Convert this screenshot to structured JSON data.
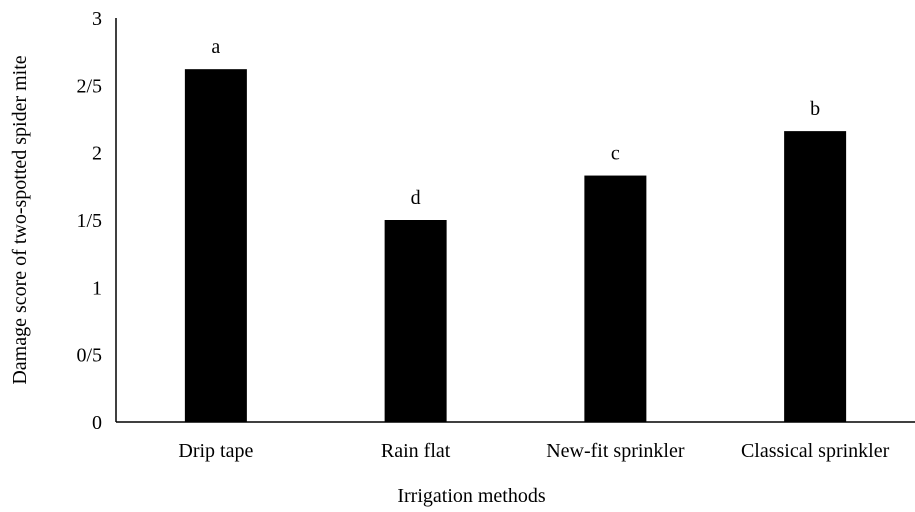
{
  "chart_data": {
    "type": "bar",
    "title": "",
    "xlabel": "Irrigation methods",
    "ylabel": "Damage score of two-spotted spider mite",
    "ylim": [
      0,
      3
    ],
    "yticks": [
      {
        "value": 0,
        "label": "0"
      },
      {
        "value": 0.5,
        "label": "0/5"
      },
      {
        "value": 1,
        "label": "1"
      },
      {
        "value": 1.5,
        "label": "1/5"
      },
      {
        "value": 2,
        "label": "2"
      },
      {
        "value": 2.5,
        "label": "2/5"
      },
      {
        "value": 3,
        "label": "3"
      }
    ],
    "categories": [
      "Drip tape",
      "Rain flat",
      "New-fit sprinkler",
      "Classical sprinkler"
    ],
    "values": [
      2.62,
      1.5,
      1.83,
      2.16
    ],
    "significance_letters": [
      "a",
      "d",
      "c",
      "b"
    ],
    "bar_color": "#000000",
    "axis_color": "#000000",
    "grid": false,
    "legend": "none"
  }
}
